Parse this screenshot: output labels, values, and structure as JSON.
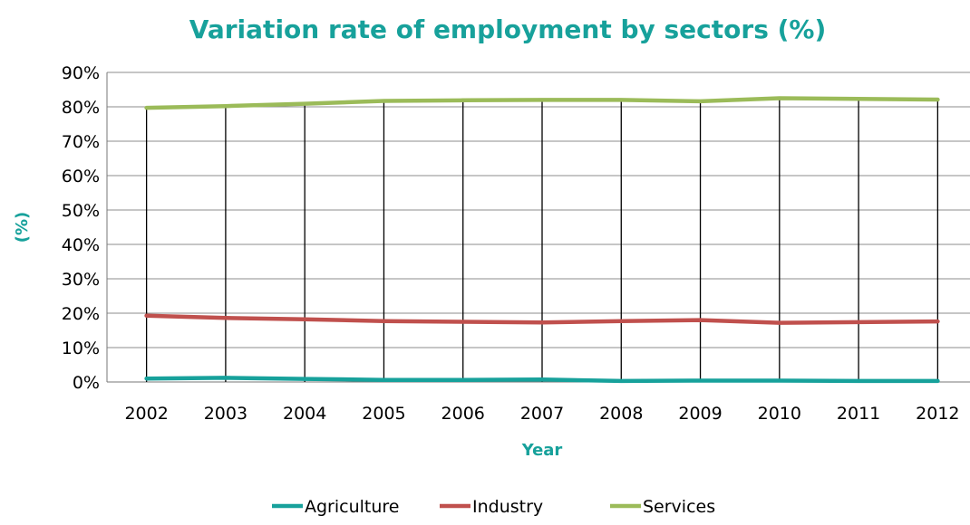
{
  "chart_data": {
    "type": "line",
    "title": "Variation rate of employment by sectors (%)",
    "xlabel": "Year",
    "ylabel": "(%)",
    "categories": [
      "2002",
      "2003",
      "2004",
      "2005",
      "2006",
      "2007",
      "2008",
      "2009",
      "2010",
      "2011",
      "2012"
    ],
    "ylim": [
      0,
      90
    ],
    "yticks": [
      "0%",
      "10%",
      "20%",
      "30%",
      "40%",
      "50%",
      "60%",
      "70%",
      "80%",
      "90%"
    ],
    "grid": true,
    "legend_position": "bottom",
    "series": [
      {
        "name": "Agriculture",
        "color": "#17a19b",
        "values": [
          1.0,
          1.2,
          0.9,
          0.6,
          0.6,
          0.7,
          0.3,
          0.4,
          0.4,
          0.3,
          0.3
        ]
      },
      {
        "name": "Industry",
        "color": "#c0504d",
        "values": [
          19.3,
          18.6,
          18.2,
          17.7,
          17.5,
          17.3,
          17.7,
          18.0,
          17.2,
          17.4,
          17.6
        ]
      },
      {
        "name": "Services",
        "color": "#9bbb59",
        "values": [
          79.7,
          80.2,
          80.9,
          81.7,
          81.9,
          82.0,
          82.0,
          81.6,
          82.5,
          82.3,
          82.1
        ]
      }
    ],
    "title_color": "#17a19b"
  }
}
